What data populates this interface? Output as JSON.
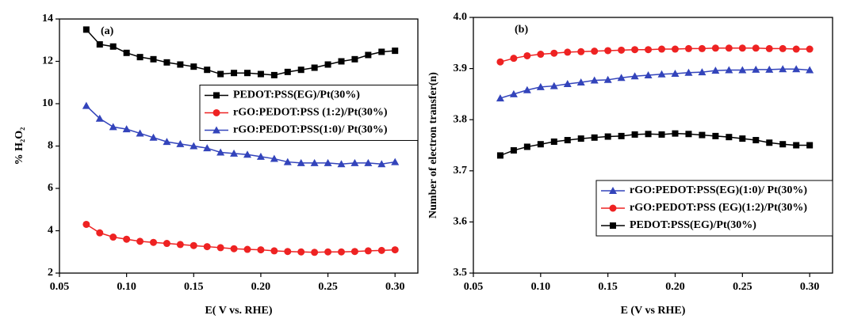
{
  "chart_data": [
    {
      "type": "line",
      "label": "(a)",
      "x_label": "E( V vs. RHE)",
      "y_label": "% H₂O₂",
      "xlim": [
        0.05,
        0.317
      ],
      "xticks": [
        {
          "value": 0.05,
          "label": "0.05"
        },
        {
          "value": 0.1,
          "label": "0.10"
        },
        {
          "value": 0.15,
          "label": "0.15"
        },
        {
          "value": 0.2,
          "label": "0.20"
        },
        {
          "value": 0.25,
          "label": "0.25"
        },
        {
          "value": 0.3,
          "label": "0.30"
        }
      ],
      "ylim": [
        2,
        14
      ],
      "yticks": [
        2,
        4,
        6,
        8,
        10,
        12,
        14
      ],
      "legend_position": "center right",
      "x": [
        0.07,
        0.08,
        0.09,
        0.1,
        0.11,
        0.12,
        0.13,
        0.14,
        0.15,
        0.16,
        0.17,
        0.18,
        0.19,
        0.2,
        0.21,
        0.22,
        0.23,
        0.24,
        0.25,
        0.26,
        0.27,
        0.28,
        0.29,
        0.3
      ],
      "series": [
        {
          "name": "PEDOT:PSS(EG)/Pt(30%)",
          "color": "#000000",
          "marker": "square",
          "values": [
            13.5,
            12.8,
            12.7,
            12.4,
            12.2,
            12.1,
            11.95,
            11.85,
            11.75,
            11.6,
            11.4,
            11.45,
            11.45,
            11.4,
            11.35,
            11.5,
            11.6,
            11.7,
            11.85,
            12.0,
            12.1,
            12.3,
            12.45,
            12.5
          ]
        },
        {
          "name": "rGO:PEDOT:PSS (1:2)/Pt(30%)",
          "color": "#ee2222",
          "marker": "circle",
          "values": [
            4.3,
            3.9,
            3.7,
            3.6,
            3.5,
            3.45,
            3.4,
            3.35,
            3.3,
            3.25,
            3.2,
            3.15,
            3.12,
            3.1,
            3.05,
            3.02,
            3.0,
            2.98,
            3.0,
            3.0,
            3.02,
            3.05,
            3.07,
            3.1
          ]
        },
        {
          "name": "rGO:PEDOT:PSS(1:0)/ Pt(30%)",
          "color": "#3344bb",
          "marker": "triangle",
          "values": [
            9.9,
            9.3,
            8.9,
            8.8,
            8.6,
            8.4,
            8.2,
            8.1,
            8.0,
            7.9,
            7.7,
            7.65,
            7.6,
            7.5,
            7.4,
            7.25,
            7.2,
            7.2,
            7.2,
            7.15,
            7.2,
            7.2,
            7.15,
            7.25
          ]
        }
      ]
    },
    {
      "type": "line",
      "label": "(b)",
      "x_label": "E (V vs RHE)",
      "y_label": "Number of electron transfer(n)",
      "xlim": [
        0.05,
        0.317
      ],
      "xticks": [
        {
          "value": 0.05,
          "label": "0.05"
        },
        {
          "value": 0.1,
          "label": "0.10"
        },
        {
          "value": 0.15,
          "label": "0.15"
        },
        {
          "value": 0.2,
          "label": "0.20"
        },
        {
          "value": 0.25,
          "label": "0.25"
        },
        {
          "value": 0.3,
          "label": "0.30"
        }
      ],
      "ylim": [
        3.5,
        4.0
      ],
      "yticks": [
        3.5,
        3.6,
        3.7,
        3.8,
        3.9,
        {
          "value": 4.0,
          "label": "4.0"
        }
      ],
      "legend_position": "lower right",
      "x": [
        0.07,
        0.08,
        0.09,
        0.1,
        0.11,
        0.12,
        0.13,
        0.14,
        0.15,
        0.16,
        0.17,
        0.18,
        0.19,
        0.2,
        0.21,
        0.22,
        0.23,
        0.24,
        0.25,
        0.26,
        0.27,
        0.28,
        0.29,
        0.3
      ],
      "series": [
        {
          "name": "rGO:PEDOT:PSS(EG)(1:0)/ Pt(30%)",
          "color": "#3344bb",
          "marker": "triangle",
          "values": [
            3.842,
            3.85,
            3.858,
            3.864,
            3.866,
            3.87,
            3.873,
            3.877,
            3.878,
            3.882,
            3.885,
            3.887,
            3.889,
            3.89,
            3.892,
            3.893,
            3.896,
            3.897,
            3.897,
            3.898,
            3.898,
            3.899,
            3.899,
            3.897
          ]
        },
        {
          "name": "rGO:PEDOT:PSS (EG)(1:2)/Pt(30%)",
          "color": "#ee2222",
          "marker": "circle",
          "values": [
            3.913,
            3.92,
            3.925,
            3.928,
            3.93,
            3.932,
            3.933,
            3.934,
            3.935,
            3.936,
            3.937,
            3.937,
            3.938,
            3.938,
            3.939,
            3.939,
            3.94,
            3.94,
            3.94,
            3.94,
            3.939,
            3.939,
            3.938,
            3.938
          ]
        },
        {
          "name": "PEDOT:PSS(EG)/Pt(30%)",
          "color": "#000000",
          "marker": "square",
          "values": [
            3.73,
            3.74,
            3.747,
            3.752,
            3.757,
            3.76,
            3.763,
            3.765,
            3.767,
            3.768,
            3.771,
            3.772,
            3.771,
            3.773,
            3.772,
            3.77,
            3.768,
            3.766,
            3.763,
            3.76,
            3.755,
            3.752,
            3.75,
            3.75
          ]
        }
      ]
    }
  ]
}
